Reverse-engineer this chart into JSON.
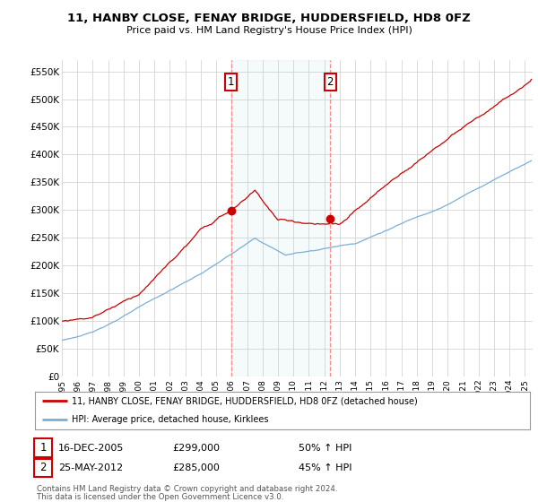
{
  "title": "11, HANBY CLOSE, FENAY BRIDGE, HUDDERSFIELD, HD8 0FZ",
  "subtitle": "Price paid vs. HM Land Registry's House Price Index (HPI)",
  "ylim": [
    0,
    570000
  ],
  "yticks": [
    0,
    50000,
    100000,
    150000,
    200000,
    250000,
    300000,
    350000,
    400000,
    450000,
    500000,
    550000
  ],
  "ytick_labels": [
    "£0",
    "£50K",
    "£100K",
    "£150K",
    "£200K",
    "£250K",
    "£300K",
    "£350K",
    "£400K",
    "£450K",
    "£500K",
    "£550K"
  ],
  "sale1_date": 2005.96,
  "sale1_price": 299000,
  "sale2_date": 2012.39,
  "sale2_price": 285000,
  "sale1_label": "16-DEC-2005",
  "sale2_label": "25-MAY-2012",
  "sale1_hpi": "50% ↑ HPI",
  "sale2_hpi": "45% ↑ HPI",
  "red_line_color": "#cc0000",
  "blue_line_color": "#7aafd4",
  "grid_color": "#cccccc",
  "background_color": "#ffffff",
  "legend_line1": "11, HANBY CLOSE, FENAY BRIDGE, HUDDERSFIELD, HD8 0FZ (detached house)",
  "legend_line2": "HPI: Average price, detached house, Kirklees",
  "footnote1": "Contains HM Land Registry data © Crown copyright and database right 2024.",
  "footnote2": "This data is licensed under the Open Government Licence v3.0.",
  "xstart": 1995,
  "xend": 2025
}
